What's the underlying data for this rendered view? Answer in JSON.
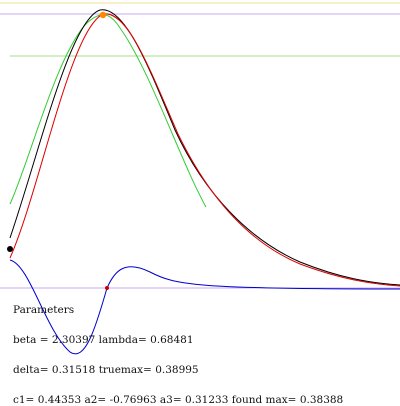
{
  "colors": {
    "black_curve": "#000000",
    "red_curve": "#e00000",
    "green_curve": "#33cc33",
    "blue_curve": "#0000cc",
    "violet_lines": "#c8a8f0",
    "green_line": "#aadd88",
    "yellow_line": "#f0e090",
    "orange_marker": "#ff8800",
    "black_marker": "#000000",
    "red_marker": "#cc0000"
  },
  "parameters": {
    "heading": "Parameters",
    "beta_label": "beta =",
    "beta": "2.30397",
    "lambda_label": "lambda=",
    "lambda": "0.68481",
    "delta_label": "delta=",
    "delta": "0.31518",
    "truemax_label": "truemax=",
    "truemax": "0.38995",
    "c1_label": "c1=",
    "c1": "0.44353",
    "a2_label": "a2=",
    "a2": "-0.76963",
    "a3_label": "a3=",
    "a3": "0.31233",
    "found_max_label": "found max=",
    "found_max": "0.38388"
  }
}
